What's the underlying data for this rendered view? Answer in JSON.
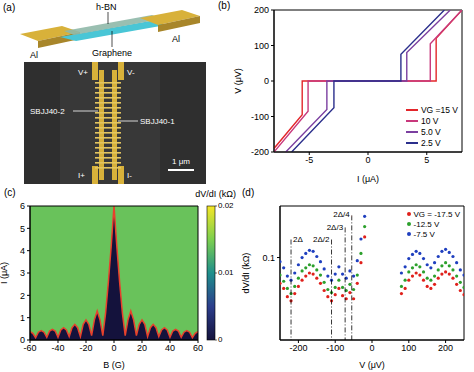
{
  "chart_data": [
    {
      "panel": "(b)",
      "type": "line",
      "x_label": "I (μA)",
      "y_label": "V (μV)",
      "xlim": [
        -8,
        8
      ],
      "xticks": [
        -5,
        0,
        5
      ],
      "ylim": [
        -200,
        200
      ],
      "yticks": [
        -200,
        -100,
        0,
        100,
        200
      ],
      "legend": "lower right",
      "series": [
        {
          "name": "VG =15 V",
          "color": "#e3262b",
          "x": [
            -8,
            -5.6,
            -5.6,
            5.8,
            5.8,
            8
          ],
          "values": [
            -190,
            -95,
            0,
            0,
            120,
            200
          ]
        },
        {
          "name": "10 V",
          "color": "#c8387c",
          "x": [
            -8,
            -5.1,
            -5.1,
            5.3,
            5.3,
            8
          ],
          "values": [
            -200,
            -85,
            0,
            0,
            105,
            200
          ]
        },
        {
          "name": "5.0 V",
          "color": "#7b3fa0",
          "x": [
            -7,
            -3.5,
            -3.5,
            3.3,
            3.3,
            7
          ],
          "values": [
            -200,
            -80,
            0,
            0,
            80,
            200
          ]
        },
        {
          "name": "2.5 V",
          "color": "#2b2f8c",
          "x": [
            -6.5,
            -2.9,
            -2.9,
            2.8,
            2.8,
            6.5
          ],
          "values": [
            -200,
            -75,
            0,
            0,
            75,
            200
          ]
        }
      ]
    },
    {
      "panel": "(c)",
      "type": "heatmap",
      "x_label": "B (G)",
      "y_label": "I (μA)",
      "xlim": [
        -60,
        60
      ],
      "xticks": [
        -60,
        -40,
        -20,
        0,
        20,
        40,
        60
      ],
      "ylim": [
        0,
        6
      ],
      "yticks": [
        0,
        1,
        2,
        3,
        4,
        5,
        6
      ],
      "color": "#e8412c",
      "x": [
        -60,
        -58,
        -56,
        -54,
        -52,
        -50,
        -48,
        -46,
        -44,
        -42,
        -40,
        -38,
        -36,
        -34,
        -32,
        -30,
        -28,
        -26,
        -24,
        -22,
        -20,
        -18,
        -16,
        -14,
        -12,
        -10,
        -8,
        -6,
        -4,
        -2,
        0,
        2,
        4,
        6,
        8,
        10,
        12,
        14,
        16,
        18,
        20,
        22,
        24,
        26,
        28,
        30,
        32,
        34,
        36,
        38,
        40,
        42,
        44,
        46,
        48,
        50,
        52,
        54,
        56,
        58,
        60
      ],
      "values": [
        0.38,
        0.3,
        0.1,
        0.35,
        0.42,
        0.35,
        0.12,
        0.4,
        0.48,
        0.4,
        0.12,
        0.45,
        0.55,
        0.45,
        0.15,
        0.55,
        0.7,
        0.55,
        0.15,
        0.7,
        0.9,
        0.7,
        0.2,
        0.9,
        1.3,
        0.9,
        0.2,
        1.2,
        2.6,
        4.2,
        6.0,
        4.2,
        2.6,
        1.2,
        0.2,
        0.9,
        1.3,
        0.9,
        0.2,
        0.7,
        0.9,
        0.7,
        0.15,
        0.55,
        0.7,
        0.55,
        0.15,
        0.45,
        0.55,
        0.45,
        0.12,
        0.4,
        0.48,
        0.4,
        0.12,
        0.35,
        0.42,
        0.35,
        0.1,
        0.3,
        0.38
      ],
      "below_value": 0,
      "above_value": 0.014,
      "colorbar": {
        "label": "dV/dI (kΩ)",
        "range": [
          0,
          0.02
        ],
        "ticks": [
          0,
          0.01,
          0.02
        ]
      }
    },
    {
      "panel": "(d)",
      "type": "scatter",
      "x_label": "V (μV)",
      "y_label": "dV/dI (kΩ)",
      "xlim": [
        -250,
        250
      ],
      "xticks": [
        -200,
        -100,
        0,
        100,
        200
      ],
      "ylim": [
        0.02,
        0.15
      ],
      "yticks": [
        0.1
      ],
      "legend": "upper right",
      "x": [
        -250,
        -240,
        -230,
        -220,
        -210,
        -200,
        -190,
        -180,
        -170,
        -160,
        -150,
        -140,
        -130,
        -120,
        -110,
        -100,
        -90,
        -80,
        -70,
        -60,
        -50,
        -40,
        -30,
        -20,
        80,
        90,
        100,
        110,
        120,
        130,
        140,
        150,
        160,
        170,
        180,
        190,
        200,
        210,
        220,
        230,
        240,
        250
      ],
      "series": [
        {
          "name": "VG = -17.5 V",
          "color": "#e0201b",
          "values": [
            0.075,
            0.07,
            0.062,
            0.058,
            0.065,
            0.072,
            0.078,
            0.082,
            0.085,
            0.084,
            0.08,
            0.075,
            0.068,
            0.062,
            0.058,
            0.064,
            0.07,
            0.063,
            0.06,
            0.066,
            0.06,
            0.075,
            0.095,
            0.12,
            0.065,
            0.07,
            0.078,
            0.082,
            0.085,
            0.083,
            0.078,
            0.072,
            0.07,
            0.074,
            0.08,
            0.084,
            0.086,
            0.084,
            0.08,
            0.074,
            0.068,
            0.064
          ]
        },
        {
          "name": "-12.5 V",
          "color": "#2ca02c",
          "values": [
            0.083,
            0.077,
            0.07,
            0.065,
            0.072,
            0.08,
            0.087,
            0.09,
            0.093,
            0.092,
            0.088,
            0.083,
            0.076,
            0.069,
            0.066,
            0.071,
            0.078,
            0.071,
            0.068,
            0.074,
            0.069,
            0.083,
            0.104,
            0.13,
            0.072,
            0.078,
            0.086,
            0.09,
            0.093,
            0.091,
            0.086,
            0.08,
            0.078,
            0.082,
            0.088,
            0.092,
            0.095,
            0.092,
            0.088,
            0.082,
            0.076,
            0.071
          ]
        },
        {
          "name": "-7.5 V",
          "color": "#1f3fbf",
          "values": [
            0.096,
            0.09,
            0.082,
            0.078,
            0.085,
            0.093,
            0.1,
            0.104,
            0.107,
            0.106,
            0.101,
            0.096,
            0.089,
            0.082,
            0.078,
            0.084,
            0.091,
            0.084,
            0.08,
            0.087,
            0.082,
            0.097,
            0.118,
            0.14,
            0.085,
            0.091,
            0.099,
            0.103,
            0.106,
            0.104,
            0.099,
            0.093,
            0.09,
            0.095,
            0.101,
            0.106,
            0.108,
            0.105,
            0.101,
            0.095,
            0.088,
            0.083
          ]
        }
      ],
      "annotations": [
        {
          "x": -220,
          "text": "2Δ"
        },
        {
          "x": -110,
          "text": "2Δ/2"
        },
        {
          "x": -73,
          "text": "2Δ/3"
        },
        {
          "x": -55,
          "text": "2Δ/4"
        }
      ]
    }
  ],
  "diagram": {
    "panel": "(a)",
    "schematic": {
      "h_bn": "h-BN",
      "left_electrode": "Al",
      "right_electrode": "Al",
      "graphene": "Graphene"
    },
    "sem": {
      "voltage_plus": "V+",
      "voltage_minus": "V-",
      "current_plus": "I+",
      "current_minus": "I-",
      "junction_left": "SBJJ40-2",
      "junction_right": "SBJJ40-1",
      "scale_bar": "1 μm"
    }
  }
}
